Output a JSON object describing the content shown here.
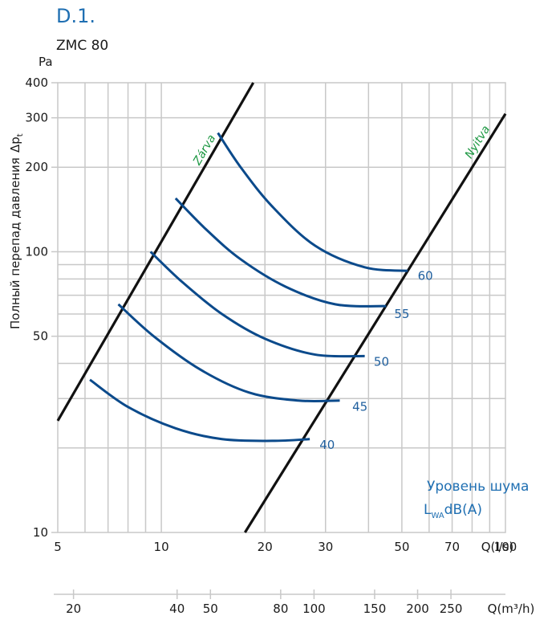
{
  "header": {
    "code": "D.1.",
    "model": "ZMC 80"
  },
  "colors": {
    "curve": "#0b4a8b",
    "grid": "#c8c8c8",
    "line": "#111111",
    "green": "#1a9640",
    "blue_text": "#1f6fb2"
  },
  "chart_data": {
    "type": "line",
    "x_scale": "log",
    "y_scale": "log",
    "xlim": [
      5,
      100
    ],
    "ylim": [
      10,
      400
    ],
    "grid": true,
    "ylabel": "Полный перепад давления",
    "ylabel_symbol": "Δp",
    "ylabel_subscript": "t",
    "yunit": "Pa",
    "xlabel": "Q(l/s)",
    "xlabel2": "Q(m³/h)",
    "x_ticks": [
      "5",
      "10",
      "20",
      "30",
      "50",
      "70",
      "100"
    ],
    "x_tick_values": [
      5,
      10,
      20,
      30,
      50,
      70,
      100
    ],
    "x2_ticks": [
      "20",
      "40",
      "50",
      "80",
      "100",
      "150",
      "200",
      "250"
    ],
    "x2_tick_values": [
      20,
      40,
      50,
      80,
      100,
      150,
      200,
      250
    ],
    "y_ticks": [
      "10",
      "50",
      "100",
      "200",
      "300",
      "400"
    ],
    "y_tick_values": [
      10,
      50,
      100,
      200,
      300,
      400
    ],
    "limit_lines": [
      {
        "name": "Zárva",
        "points": [
          [
            5,
            25
          ],
          [
            18.5,
            400
          ]
        ]
      },
      {
        "name": "Nyitva",
        "points": [
          [
            17.5,
            10
          ],
          [
            100,
            310
          ]
        ]
      }
    ],
    "series": [
      {
        "name": "40",
        "points": [
          [
            6.2,
            35
          ],
          [
            8,
            28
          ],
          [
            11,
            23.5
          ],
          [
            15,
            21.5
          ],
          [
            21,
            21.2
          ],
          [
            27,
            21.5
          ]
        ]
      },
      {
        "name": "45",
        "points": [
          [
            7.5,
            65
          ],
          [
            9.5,
            50
          ],
          [
            13,
            38
          ],
          [
            18,
            31.5
          ],
          [
            25,
            29.5
          ],
          [
            33,
            29.5
          ]
        ]
      },
      {
        "name": "50",
        "points": [
          [
            9.3,
            100
          ],
          [
            11.5,
            78
          ],
          [
            15,
            60
          ],
          [
            20,
            49
          ],
          [
            28,
            43
          ],
          [
            39,
            42.5
          ]
        ]
      },
      {
        "name": "55",
        "points": [
          [
            11,
            155
          ],
          [
            13.5,
            120
          ],
          [
            17,
            94
          ],
          [
            23,
            75
          ],
          [
            32,
            65
          ],
          [
            45,
            64
          ]
        ]
      },
      {
        "name": "60",
        "points": [
          [
            14.6,
            265
          ],
          [
            17,
            200
          ],
          [
            21,
            145
          ],
          [
            28,
            105
          ],
          [
            39,
            88
          ],
          [
            52,
            85.5
          ]
        ]
      }
    ],
    "series_label_positions": [
      {
        "label": "40",
        "x": 28.5,
        "y": 20.5
      },
      {
        "label": "45",
        "x": 35.5,
        "y": 28
      },
      {
        "label": "50",
        "x": 41,
        "y": 40.5
      },
      {
        "label": "55",
        "x": 47,
        "y": 60
      },
      {
        "label": "60",
        "x": 55,
        "y": 82
      }
    ],
    "legend": {
      "title": "Уровень шума",
      "sym_main": "L",
      "sym_sub": "WA",
      "sym_unit": "dB(A)"
    }
  }
}
